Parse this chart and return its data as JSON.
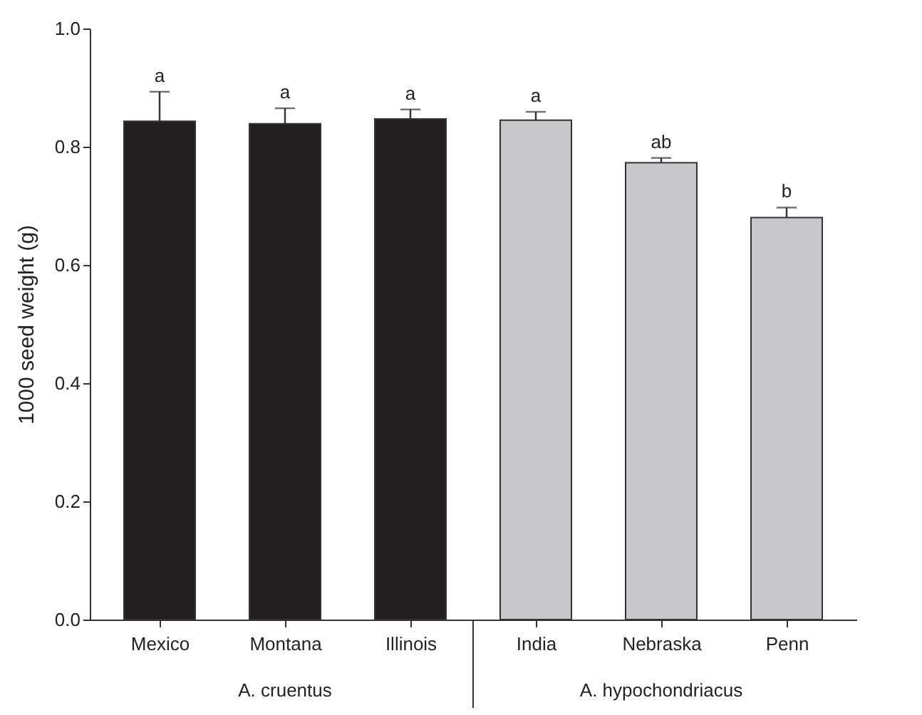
{
  "chart_data": {
    "type": "bar",
    "ylabel": "1000 seed weight (g)",
    "categories": [
      "Mexico",
      "Montana",
      "Illinois",
      "India",
      "Nebraska",
      "Penn"
    ],
    "values": [
      0.843,
      0.839,
      0.847,
      0.845,
      0.773,
      0.68
    ],
    "errors": [
      0.05,
      0.026,
      0.016,
      0.014,
      0.008,
      0.017
    ],
    "colors": [
      "#231f20",
      "#231f20",
      "#231f20",
      "#c8c8ca",
      "#c8c8ca",
      "#c8c8ca"
    ],
    "ylim": [
      0,
      1.0
    ],
    "yticks": [
      {
        "value": 0,
        "label": "0.0"
      },
      0.2,
      0.4,
      0.6,
      0.8,
      {
        "value": 1,
        "label": "1.0"
      }
    ],
    "grid": false,
    "annotations": [
      {
        "text": "a",
        "x": "Mexico",
        "y": 0.893
      },
      {
        "text": "a",
        "x": "Montana",
        "y": 0.865
      },
      {
        "text": "a",
        "x": "Illinois",
        "y": 0.863
      },
      {
        "text": "a",
        "x": "India",
        "y": 0.859
      },
      {
        "text": "ab",
        "x": "Nebraska",
        "y": 0.781
      },
      {
        "text": "b",
        "x": "Penn",
        "y": 0.697
      },
      "A. cruentus",
      "A. hypochondriacus"
    ]
  }
}
